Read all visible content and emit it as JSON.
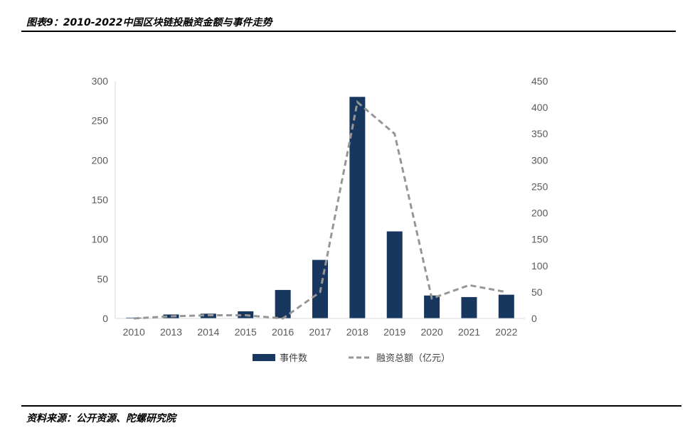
{
  "title": "图表9：2010-2022中国区块链投融资金额与事件走势",
  "source": "资料来源：公开资源、陀螺研究院",
  "colors": {
    "bar": "#17375e",
    "line": "#969696",
    "axis": "#d9d9d9",
    "tick_text": "#595959"
  },
  "chart_data": {
    "type": "bar",
    "categories": [
      "2010",
      "2013",
      "2014",
      "2015",
      "2016",
      "2017",
      "2018",
      "2019",
      "2020",
      "2021",
      "2022"
    ],
    "series": [
      {
        "name": "事件数",
        "type": "bar",
        "axis": "left",
        "values": [
          1,
          5,
          6,
          9,
          36,
          74,
          280,
          110,
          29,
          27,
          30
        ]
      },
      {
        "name": "融资总额（亿元）",
        "type": "line",
        "style": "dashed",
        "axis": "right",
        "values": [
          0,
          4,
          6,
          6,
          0,
          50,
          410,
          350,
          38,
          63,
          50
        ]
      }
    ],
    "y_left": {
      "ylim": [
        0,
        300
      ],
      "ticks": [
        0,
        50,
        100,
        150,
        200,
        250,
        300
      ]
    },
    "y_right": {
      "ylim": [
        0,
        450
      ],
      "ticks": [
        0,
        50,
        100,
        150,
        200,
        250,
        300,
        350,
        400,
        450
      ]
    },
    "legend_position": "bottom",
    "grid": false
  }
}
